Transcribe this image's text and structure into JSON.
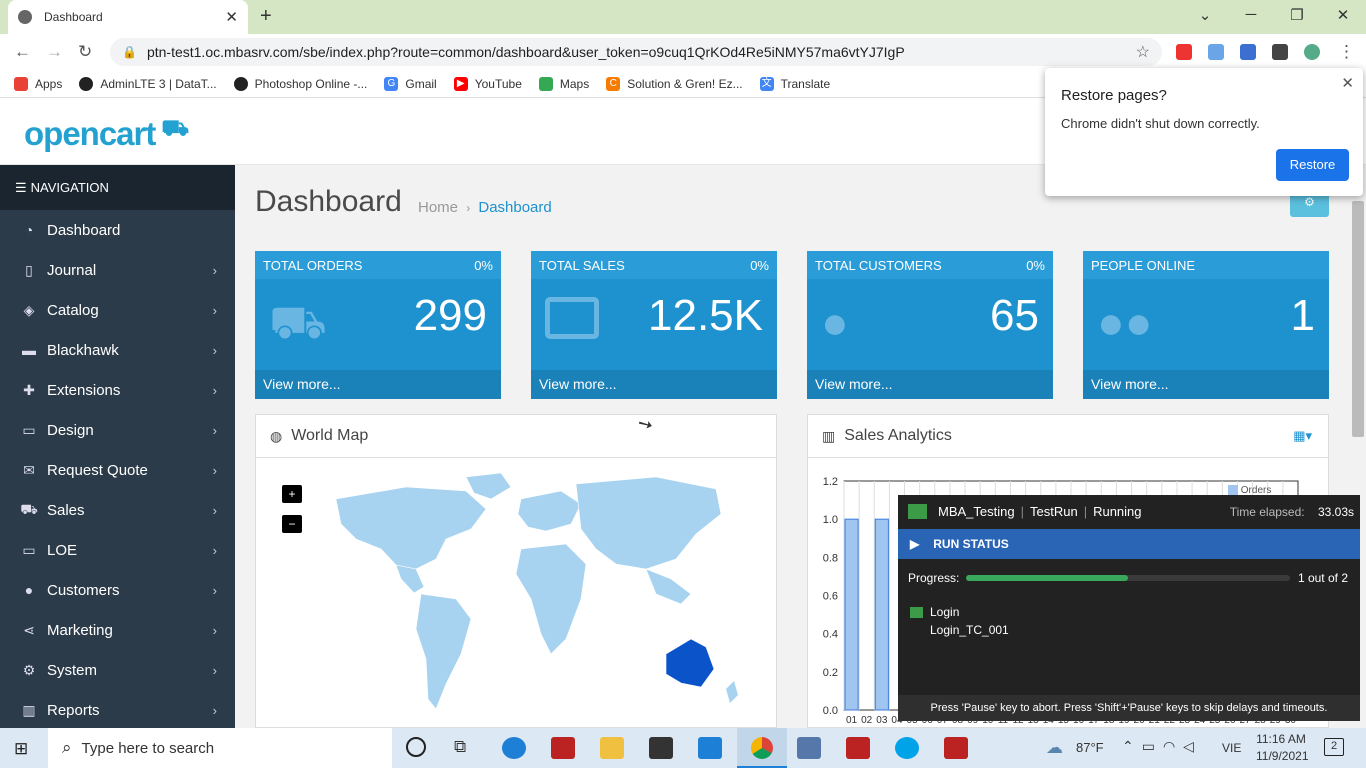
{
  "browser": {
    "tab_title": "Dashboard",
    "url": "ptn-test1.oc.mbasrv.com/sbe/index.php?route=common/dashboard&user_token=o9cuq1QrKOd4Re5iNMY57ma6vtYJ7IgP",
    "bookmarks": [
      {
        "label": "Apps",
        "color": "#e94235"
      },
      {
        "label": "AdminLTE 3 | DataT...",
        "color": "#222"
      },
      {
        "label": "Photoshop Online -...",
        "color": "#222"
      },
      {
        "label": "Gmail",
        "color": "#4285f4"
      },
      {
        "label": "YouTube",
        "color": "#ff0000"
      },
      {
        "label": "Maps",
        "color": "#34a853"
      },
      {
        "label": "Solution & Gren! Ez...",
        "color": "#f57c00"
      },
      {
        "label": "Translate",
        "color": "#4285f4"
      }
    ]
  },
  "header": {
    "logo": "opencart"
  },
  "sidebar": {
    "heading": "NAVIGATION",
    "items": [
      {
        "label": "Dashboard",
        "icon": "dashboard-icon",
        "glyph": "◔",
        "arrow": false
      },
      {
        "label": "Journal",
        "icon": "journal-icon",
        "glyph": "▯",
        "arrow": true
      },
      {
        "label": "Catalog",
        "icon": "tag-icon",
        "glyph": "◈",
        "arrow": true
      },
      {
        "label": "Blackhawk",
        "icon": "blackhawk-icon",
        "glyph": "▬",
        "arrow": true
      },
      {
        "label": "Extensions",
        "icon": "puzzle-icon",
        "glyph": "✚",
        "arrow": true
      },
      {
        "label": "Design",
        "icon": "monitor-icon",
        "glyph": "▭",
        "arrow": true
      },
      {
        "label": "Request Quote",
        "icon": "envelope-icon",
        "glyph": "✉",
        "arrow": true
      },
      {
        "label": "Sales",
        "icon": "cart-icon",
        "glyph": "⛟",
        "arrow": true
      },
      {
        "label": "LOE",
        "icon": "folder-icon",
        "glyph": "▭",
        "arrow": true
      },
      {
        "label": "Customers",
        "icon": "user-icon",
        "glyph": "●",
        "arrow": true
      },
      {
        "label": "Marketing",
        "icon": "share-icon",
        "glyph": "⋖",
        "arrow": true
      },
      {
        "label": "System",
        "icon": "gear-icon",
        "glyph": "⚙",
        "arrow": true
      },
      {
        "label": "Reports",
        "icon": "bar-chart-icon",
        "glyph": "▥",
        "arrow": true
      }
    ]
  },
  "page": {
    "title": "Dashboard",
    "breadcrumb_home": "Home",
    "breadcrumb_current": "Dashboard"
  },
  "tiles": [
    {
      "title": "TOTAL ORDERS",
      "percent": "0%",
      "value": "299",
      "more": "View more...",
      "icon": "shopping-cart-icon"
    },
    {
      "title": "TOTAL SALES",
      "percent": "0%",
      "value": "12.5K",
      "more": "View more...",
      "icon": "credit-card-icon"
    },
    {
      "title": "TOTAL CUSTOMERS",
      "percent": "0%",
      "value": "65",
      "more": "View more...",
      "icon": "user-icon"
    },
    {
      "title": "PEOPLE ONLINE",
      "percent": "",
      "value": "1",
      "more": "View more...",
      "icon": "users-icon"
    }
  ],
  "world_map": {
    "title": "World Map",
    "zoom_in": "+",
    "zoom_out": "−"
  },
  "sales_analytics": {
    "title": "Sales Analytics",
    "legend_label": "Orders"
  },
  "chart_data": {
    "type": "bar",
    "categories": [
      "01",
      "02",
      "03",
      "04",
      "05",
      "06",
      "07",
      "08",
      "09",
      "10",
      "11",
      "12",
      "13",
      "14",
      "15",
      "16",
      "17",
      "18",
      "19",
      "20",
      "21",
      "22",
      "23",
      "24",
      "25",
      "26",
      "27",
      "28",
      "29",
      "30"
    ],
    "series": [
      {
        "name": "Orders",
        "values": [
          1,
          0,
          1,
          0,
          0,
          0,
          0,
          0,
          0,
          0,
          0,
          0,
          0,
          0,
          0,
          0,
          0,
          0,
          0,
          0,
          0,
          0,
          0,
          0,
          0,
          0,
          0,
          0,
          0,
          0
        ]
      }
    ],
    "yticks": [
      "1.2",
      "1.0",
      "0.8",
      "0.6",
      "0.4",
      "0.2",
      "0.0"
    ],
    "ylim": [
      0,
      1.2
    ],
    "color": "#9fc5f0"
  },
  "run_status": {
    "project": "MBA_Testing",
    "run": "TestRun",
    "state": "Running",
    "elapsed_label": "Time elapsed:",
    "elapsed": "33.03s",
    "bar_label": "RUN STATUS",
    "progress_label": "Progress:",
    "progress_fraction": 0.5,
    "progress_text": "1 out of 2",
    "suite": "Login",
    "testcase": "Login_TC_001",
    "footer": "Press 'Pause' key to abort. Press 'Shift'+'Pause' keys to skip delays and timeouts."
  },
  "restore_popup": {
    "title": "Restore pages?",
    "message": "Chrome didn't shut down correctly.",
    "button": "Restore"
  },
  "taskbar": {
    "search_placeholder": "Type here to search",
    "temperature": "87°F",
    "language": "VIE",
    "time": "11:16 AM",
    "date": "11/9/2021",
    "notifications": "2"
  }
}
